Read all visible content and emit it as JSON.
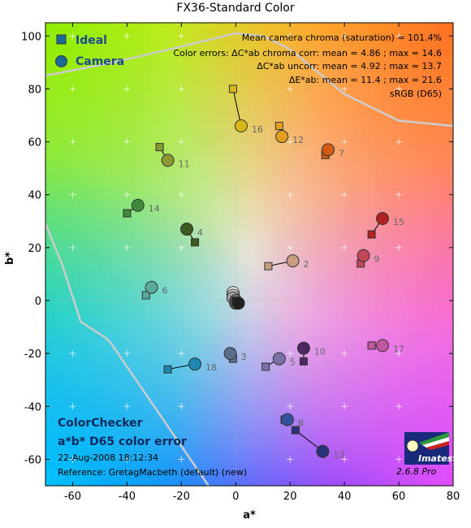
{
  "chart_data": {
    "type": "scatter",
    "title": "FX36-Standard Color",
    "xlabel": "a*",
    "ylabel": "b*",
    "xlim": [
      -70,
      80
    ],
    "ylim": [
      -70,
      105
    ],
    "xticks": [
      -60,
      -40,
      -20,
      0,
      20,
      40,
      60,
      80
    ],
    "yticks": [
      -60,
      -40,
      -20,
      0,
      20,
      40,
      60,
      80,
      100
    ],
    "grid": true,
    "legend_position": "top-left",
    "legend": [
      {
        "name": "Ideal",
        "marker": "square"
      },
      {
        "name": "Camera",
        "marker": "circle"
      }
    ],
    "stats": [
      "Mean camera chroma (saturation) = 101.4%",
      "Color errors:  ΔC*ab chroma corr:  mean = 4.86 ;  max = 14.6",
      "ΔC*ab uncorr:  mean = 4.92 ;  max = 13.7",
      "ΔE*ab:  mean = 11.4 ;  max = 21.6",
      "sRGB (D65)"
    ],
    "patches": [
      {
        "id": "2",
        "ideal": [
          12,
          13
        ],
        "camera": [
          21,
          15
        ],
        "color": "#c89a80"
      },
      {
        "id": "3",
        "ideal": [
          -1,
          -22
        ],
        "camera": [
          -2,
          -20
        ],
        "color": "#5a6e8c"
      },
      {
        "id": "4",
        "ideal": [
          -15,
          22
        ],
        "camera": [
          -18,
          27
        ],
        "color": "#3f5a1e"
      },
      {
        "id": "5",
        "ideal": [
          11,
          -25
        ],
        "camera": [
          16,
          -22
        ],
        "color": "#7a72a6"
      },
      {
        "id": "6",
        "ideal": [
          -33,
          2
        ],
        "camera": [
          -31,
          5
        ],
        "color": "#5aaa9a"
      },
      {
        "id": "7",
        "ideal": [
          33,
          55
        ],
        "camera": [
          34,
          57
        ],
        "color": "#d45c10"
      },
      {
        "id": "8",
        "ideal": [
          18,
          -45
        ],
        "camera": [
          19,
          -45
        ],
        "color": "#3650a0"
      },
      {
        "id": "9",
        "ideal": [
          46,
          14
        ],
        "camera": [
          47,
          17
        ],
        "color": "#c04858"
      },
      {
        "id": "10",
        "ideal": [
          25,
          -23
        ],
        "camera": [
          25,
          -18
        ],
        "color": "#4a2860"
      },
      {
        "id": "11",
        "ideal": [
          -28,
          58
        ],
        "camera": [
          -25,
          53
        ],
        "color": "#8a9a32"
      },
      {
        "id": "12",
        "ideal": [
          16,
          66
        ],
        "camera": [
          17,
          62
        ],
        "color": "#e0a020"
      },
      {
        "id": "13",
        "ideal": [
          22,
          -49
        ],
        "camera": [
          32,
          -57
        ],
        "color": "#2a307a"
      },
      {
        "id": "14",
        "ideal": [
          -40,
          33
        ],
        "camera": [
          -36,
          36
        ],
        "color": "#3e8a3c"
      },
      {
        "id": "15",
        "ideal": [
          50,
          25
        ],
        "camera": [
          54,
          31
        ],
        "color": "#b22222"
      },
      {
        "id": "16",
        "ideal": [
          -1,
          80
        ],
        "camera": [
          2,
          66
        ],
        "color": "#d8b818"
      },
      {
        "id": "17",
        "ideal": [
          50,
          -17
        ],
        "camera": [
          54,
          -17
        ],
        "color": "#c058a0"
      },
      {
        "id": "18",
        "ideal": [
          -25,
          -26
        ],
        "camera": [
          -15,
          -24
        ],
        "color": "#1a88b0"
      },
      {
        "id": "19",
        "ideal": [
          -1,
          2
        ],
        "camera": [
          -1,
          3
        ],
        "color": "#f0f0f0"
      },
      {
        "id": "20",
        "ideal": [
          0,
          1
        ],
        "camera": [
          -1,
          2
        ],
        "color": "#c8c8c8"
      },
      {
        "id": "21",
        "ideal": [
          0,
          0
        ],
        "camera": [
          -1,
          1
        ],
        "color": "#a0a0a0"
      },
      {
        "id": "22",
        "ideal": [
          0,
          0
        ],
        "camera": [
          0,
          0
        ],
        "color": "#787878"
      },
      {
        "id": "23",
        "ideal": [
          0,
          0
        ],
        "camera": [
          0,
          -1
        ],
        "color": "#505050"
      },
      {
        "id": "24",
        "ideal": [
          0,
          0
        ],
        "camera": [
          1,
          -1
        ],
        "color": "#202020"
      }
    ],
    "labeled_ids": [
      "2",
      "3",
      "4",
      "5",
      "6",
      "7",
      "8",
      "9",
      "10",
      "11",
      "12",
      "13",
      "14",
      "15",
      "16",
      "17",
      "18"
    ],
    "gamut_boundary_upper": [
      [
        -70,
        85
      ],
      [
        -45,
        90
      ],
      [
        -20,
        96
      ],
      [
        0,
        101
      ],
      [
        10,
        100
      ],
      [
        20,
        95
      ],
      [
        40,
        78
      ],
      [
        60,
        68
      ],
      [
        80,
        66
      ]
    ],
    "gamut_boundary_left": [
      [
        -70,
        29
      ],
      [
        -64,
        14
      ],
      [
        -57,
        -8
      ],
      [
        -48,
        -14
      ],
      [
        -46,
        -16
      ],
      [
        -38,
        -28
      ],
      [
        -30,
        -40
      ],
      [
        -20,
        -55
      ],
      [
        -10,
        -70
      ]
    ]
  },
  "texts": {
    "bottom_title1": "ColorChecker",
    "bottom_title2": "a*b* D65 color error",
    "timestamp": "22-Aug-2008 18:12:34",
    "reference": "Reference: GretagMacbeth (default) (new)",
    "logo": "Imatest",
    "version": "2.6.8  Pro"
  },
  "colors": {
    "ideal_edge": "#333333",
    "camera_edge": "#333333",
    "grid": "#ffffff",
    "center_line": "#b0b0b0",
    "gamut_line": "#cccccc"
  }
}
